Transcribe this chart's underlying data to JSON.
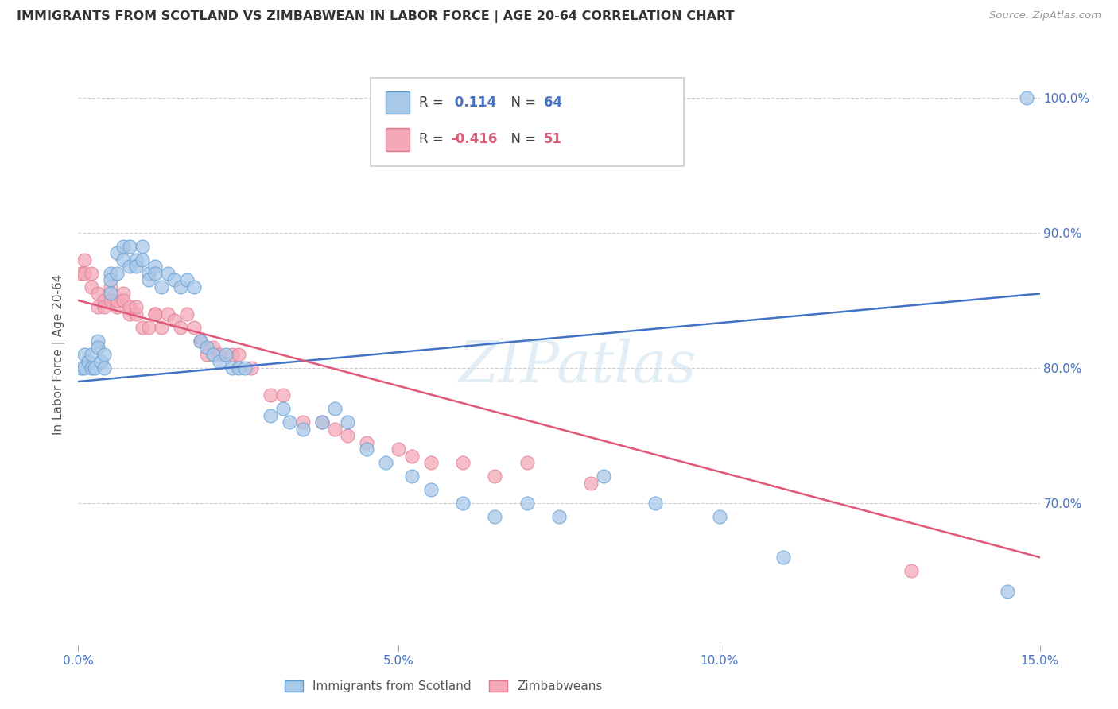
{
  "title": "IMMIGRANTS FROM SCOTLAND VS ZIMBABWEAN IN LABOR FORCE | AGE 20-64 CORRELATION CHART",
  "source": "Source: ZipAtlas.com",
  "ylabel": "In Labor Force | Age 20-64",
  "legend_label_1": "Immigrants from Scotland",
  "legend_label_2": "Zimbabweans",
  "R1": 0.114,
  "N1": 64,
  "R2": -0.416,
  "N2": 51,
  "color_blue": "#a8c8e8",
  "color_blue_dark": "#5b9bd5",
  "color_blue_line": "#4472C4",
  "color_pink": "#f4a8b8",
  "color_pink_dark": "#e07890",
  "color_pink_line": "#e05878",
  "color_axis_label": "#4472C4",
  "xlim": [
    0.0,
    0.15
  ],
  "ylim": [
    0.595,
    1.025
  ],
  "yticks_right": [
    0.7,
    0.8,
    0.9,
    1.0
  ],
  "ytick_labels_right": [
    "70.0%",
    "80.0%",
    "90.0%",
    "100.0%"
  ],
  "xticks": [
    0.0,
    0.05,
    0.1,
    0.15
  ],
  "xtick_labels": [
    "0.0%",
    "5.0%",
    "10.0%",
    "15.0%"
  ],
  "blue_scatter_x": [
    0.0005,
    0.001,
    0.001,
    0.0015,
    0.002,
    0.002,
    0.0025,
    0.003,
    0.003,
    0.0035,
    0.004,
    0.004,
    0.005,
    0.005,
    0.005,
    0.006,
    0.006,
    0.007,
    0.007,
    0.008,
    0.008,
    0.009,
    0.009,
    0.01,
    0.01,
    0.011,
    0.011,
    0.012,
    0.012,
    0.013,
    0.014,
    0.015,
    0.016,
    0.017,
    0.018,
    0.019,
    0.02,
    0.021,
    0.022,
    0.023,
    0.024,
    0.025,
    0.026,
    0.03,
    0.032,
    0.033,
    0.035,
    0.038,
    0.04,
    0.042,
    0.045,
    0.048,
    0.052,
    0.055,
    0.06,
    0.065,
    0.07,
    0.075,
    0.082,
    0.09,
    0.1,
    0.11,
    0.145,
    0.148
  ],
  "blue_scatter_y": [
    0.8,
    0.81,
    0.8,
    0.805,
    0.8,
    0.81,
    0.8,
    0.82,
    0.815,
    0.805,
    0.8,
    0.81,
    0.87,
    0.865,
    0.855,
    0.885,
    0.87,
    0.89,
    0.88,
    0.89,
    0.875,
    0.88,
    0.875,
    0.89,
    0.88,
    0.87,
    0.865,
    0.875,
    0.87,
    0.86,
    0.87,
    0.865,
    0.86,
    0.865,
    0.86,
    0.82,
    0.815,
    0.81,
    0.805,
    0.81,
    0.8,
    0.8,
    0.8,
    0.765,
    0.77,
    0.76,
    0.755,
    0.76,
    0.77,
    0.76,
    0.74,
    0.73,
    0.72,
    0.71,
    0.7,
    0.69,
    0.7,
    0.69,
    0.72,
    0.7,
    0.69,
    0.66,
    0.635,
    1.0
  ],
  "pink_scatter_x": [
    0.0005,
    0.001,
    0.001,
    0.002,
    0.002,
    0.003,
    0.003,
    0.004,
    0.004,
    0.005,
    0.005,
    0.006,
    0.006,
    0.007,
    0.007,
    0.008,
    0.008,
    0.009,
    0.009,
    0.01,
    0.011,
    0.012,
    0.012,
    0.013,
    0.014,
    0.015,
    0.016,
    0.017,
    0.018,
    0.019,
    0.02,
    0.021,
    0.022,
    0.024,
    0.025,
    0.027,
    0.03,
    0.032,
    0.035,
    0.038,
    0.04,
    0.042,
    0.045,
    0.05,
    0.052,
    0.055,
    0.06,
    0.065,
    0.07,
    0.08,
    0.13
  ],
  "pink_scatter_y": [
    0.87,
    0.88,
    0.87,
    0.86,
    0.87,
    0.845,
    0.855,
    0.85,
    0.845,
    0.86,
    0.85,
    0.845,
    0.85,
    0.855,
    0.85,
    0.84,
    0.845,
    0.84,
    0.845,
    0.83,
    0.83,
    0.84,
    0.84,
    0.83,
    0.84,
    0.835,
    0.83,
    0.84,
    0.83,
    0.82,
    0.81,
    0.815,
    0.81,
    0.81,
    0.81,
    0.8,
    0.78,
    0.78,
    0.76,
    0.76,
    0.755,
    0.75,
    0.745,
    0.74,
    0.735,
    0.73,
    0.73,
    0.72,
    0.73,
    0.715,
    0.65
  ],
  "blue_line_x": [
    0.0,
    0.15
  ],
  "blue_line_y": [
    0.79,
    0.855
  ],
  "pink_line_x": [
    0.0,
    0.15
  ],
  "pink_line_y": [
    0.85,
    0.66
  ],
  "watermark": "ZIPatlas",
  "bg_color": "#ffffff",
  "grid_color": "#d0d0d0"
}
